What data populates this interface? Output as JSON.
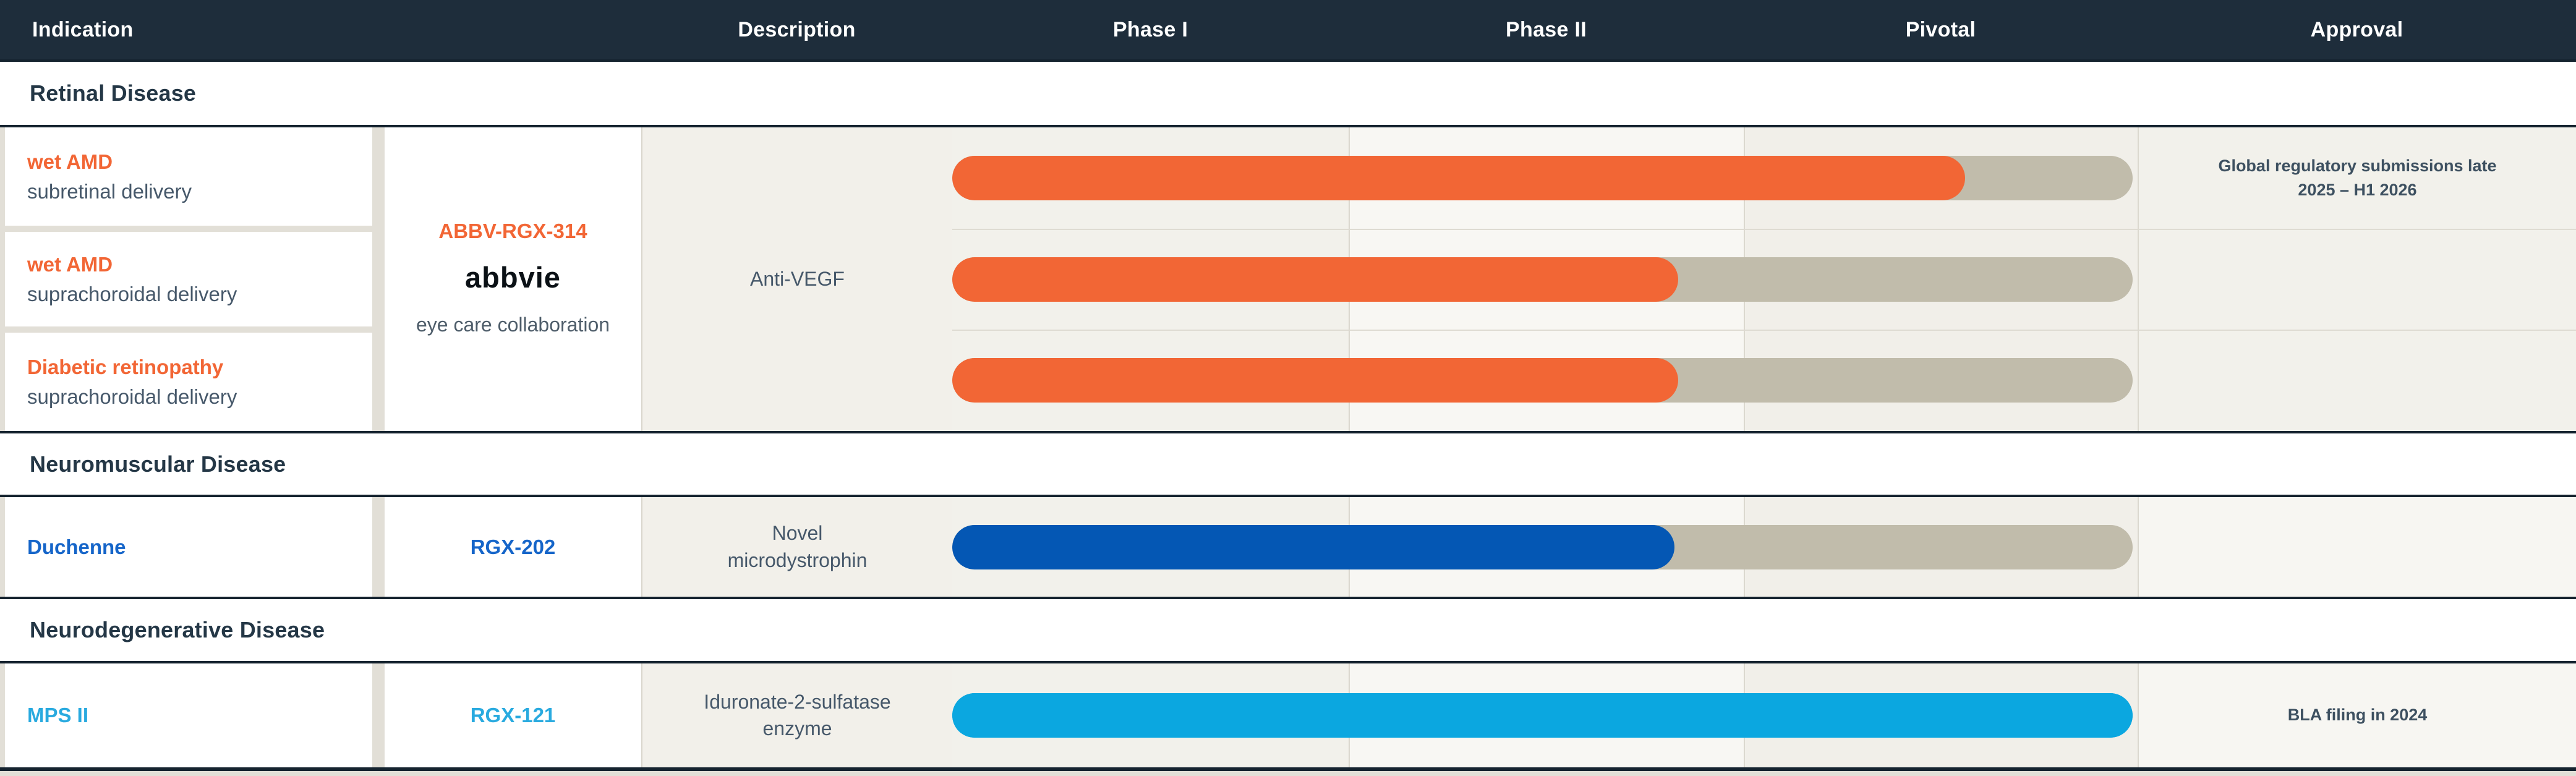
{
  "header": {
    "columns": [
      "Indication",
      "Description",
      "Phase I",
      "Phase II",
      "Pivotal",
      "Approval"
    ]
  },
  "sections": [
    {
      "title": "Retinal Disease",
      "program": {
        "code": "ABBV-RGX-314",
        "partner": "abbvie",
        "partner_note": "eye care collaboration",
        "description": "Anti-VEGF"
      },
      "rows": [
        {
          "indication": "wet AMD",
          "delivery": "subretinal delivery",
          "approval_note": "Global regulatory submissions late 2025 – H1 2026"
        },
        {
          "indication": "wet AMD",
          "delivery": "suprachoroidal delivery"
        },
        {
          "indication": "Diabetic retinopathy",
          "delivery": "suprachoroidal delivery"
        }
      ]
    },
    {
      "title": "Neuromuscular Disease",
      "rows": [
        {
          "indication": "Duchenne",
          "program": "RGX-202",
          "description": "Novel microdystrophin"
        }
      ]
    },
    {
      "title": "Neurodegenerative Disease",
      "rows": [
        {
          "indication": "MPS II",
          "program": "RGX-121",
          "description": "Iduronate-2-sulfatase enzyme",
          "approval_note": "BLA filing in 2024"
        }
      ]
    }
  ],
  "colors": {
    "orange": "#F26635",
    "blue": "#1565C9",
    "cyan": "#29AADF",
    "navy": "#243746",
    "header_bg": "#1E2D3B",
    "track_gray": "#C1BCAB"
  },
  "chart_data": {
    "type": "bar",
    "phases": [
      "Phase I",
      "Phase II",
      "Pivotal",
      "Approval"
    ],
    "track_range": "Phase I start through Pivotal end",
    "rows": [
      {
        "label": "wet AMD — subretinal delivery",
        "program": "ABBV-RGX-314",
        "section": "Retinal Disease",
        "bar_color": "#F26635",
        "track_color": "#C1BCAB",
        "fill_pct": 85.8,
        "stage_reached": "mid-Pivotal",
        "approval_note": "Global regulatory submissions late 2025 – H1 2026"
      },
      {
        "label": "wet AMD — suprachoroidal delivery",
        "program": "ABBV-RGX-314",
        "section": "Retinal Disease",
        "bar_color": "#F26635",
        "track_color": "#C1BCAB",
        "fill_pct": 61.5,
        "stage_reached": "late Phase II"
      },
      {
        "label": "Diabetic retinopathy — suprachoroidal delivery",
        "program": "ABBV-RGX-314",
        "section": "Retinal Disease",
        "bar_color": "#F26635",
        "track_color": "#C1BCAB",
        "fill_pct": 61.5,
        "stage_reached": "late Phase II"
      },
      {
        "label": "Duchenne",
        "program": "RGX-202",
        "section": "Neuromuscular Disease",
        "bar_color": "#0457B4",
        "track_color": "#C1BCAB",
        "fill_pct": 61.2,
        "stage_reached": "late Phase II"
      },
      {
        "label": "MPS II",
        "program": "RGX-121",
        "section": "Neurodegenerative Disease",
        "bar_color": "#0BA7E0",
        "track_color": "#0BA7E0",
        "fill_pct": 100,
        "stage_reached": "through Pivotal",
        "approval_note": "BLA filing in 2024"
      }
    ]
  }
}
